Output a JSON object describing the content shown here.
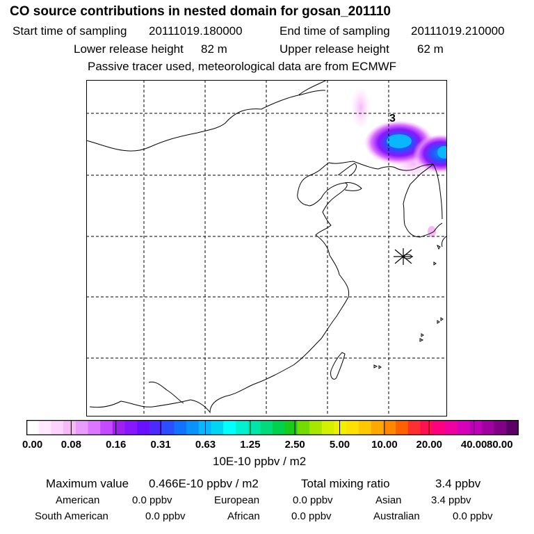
{
  "header": {
    "title": "CO  source contributions in nested domain for gosan_201110",
    "start_label": "Start time of sampling",
    "start_value": "20111019.180000",
    "end_label": "End time of sampling",
    "end_value": "20111019.210000",
    "lower_label": "Lower release height",
    "lower_value": "82 m",
    "upper_label": "Upper release height",
    "upper_value": "62 m",
    "note": "Passive tracer used, meteorological data are from ECMWF"
  },
  "map": {
    "marker_label": "3"
  },
  "colorbar": {
    "ticks": [
      "0.00",
      "0.08",
      "0.16",
      "0.31",
      "0.63",
      "1.25",
      "2.50",
      "5.00",
      "10.00",
      "20.00",
      "40.00",
      "80.00"
    ],
    "units": "10E-10 ppbv / m2",
    "colors": [
      "#ffffff",
      "#ffe9ff",
      "#fdd3fd",
      "#f6b8f6",
      "#ea9bff",
      "#dc75ff",
      "#c449ff",
      "#a020f0",
      "#8a16ff",
      "#6a10ff",
      "#4a2aff",
      "#2a4fff",
      "#1271ff",
      "#0a93ff",
      "#0ab7ff",
      "#00d6f4",
      "#00ffff",
      "#00f0d0",
      "#00e6a8",
      "#00dc7c",
      "#00d24e",
      "#18cc18",
      "#70dc00",
      "#a8e600",
      "#d2f000",
      "#f0f000",
      "#ffe000",
      "#ffc800",
      "#ffa800",
      "#ff8800",
      "#ff6000",
      "#ff2f2f",
      "#ff1050",
      "#ff0080",
      "#f000a0",
      "#d800b8",
      "#be00b8",
      "#a000a0",
      "#820086",
      "#5a0066"
    ]
  },
  "summary": {
    "max_label": "Maximum value",
    "max_value": "0.466E-10 ppbv / m2",
    "total_label": "Total mixing ratio",
    "total_value": "3.4 ppbv",
    "regions": [
      {
        "name": "American",
        "value": "0.0 ppbv"
      },
      {
        "name": "European",
        "value": "0.0 ppbv"
      },
      {
        "name": "Asian",
        "value": "3.4 ppbv"
      },
      {
        "name": "South American",
        "value": "0.0 ppbv"
      },
      {
        "name": "African",
        "value": "0.0 ppbv"
      },
      {
        "name": "Australian",
        "value": "0.0 ppbv"
      }
    ]
  }
}
